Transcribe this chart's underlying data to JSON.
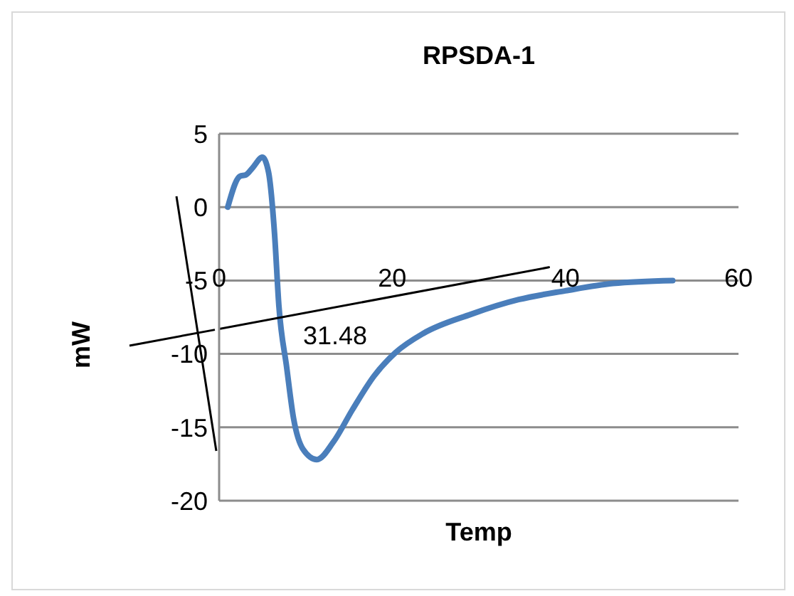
{
  "chart_data": {
    "type": "line",
    "title": "RPSDA-1",
    "xlabel": "Temp",
    "ylabel": "mW",
    "annotations": [
      "31.48"
    ],
    "xlim": [
      0,
      60
    ],
    "xticks": [
      0,
      20,
      40,
      60
    ],
    "ylim": [
      -20,
      5
    ],
    "yticks": [
      -20,
      -15,
      -10,
      -5,
      0,
      5
    ],
    "grid": "y",
    "legend": false,
    "marker": "none",
    "line_style": "solid",
    "series": [
      {
        "color": "#4a7ebb",
        "x": [
          1.0,
          2.4,
          3.1,
          3.9,
          5.0,
          5.7,
          6.4,
          6.9,
          7.8,
          8.6,
          9.7,
          11.3,
          13.2,
          15.4,
          17.9,
          20.4,
          23.6,
          29.1,
          34.6,
          40.0,
          45.5,
          52.4
        ],
        "values": [
          0,
          2.1,
          2.2,
          2.7,
          3.4,
          2.4,
          -1.8,
          -6.7,
          -10.9,
          -14.4,
          -16.5,
          -17.2,
          -16.0,
          -13.8,
          -11.5,
          -9.9,
          -8.6,
          -7.3,
          -6.3,
          -5.7,
          -5.2,
          -5.0
        ]
      },
      {
        "color": "#000000",
        "x": [
          0,
          38.1
        ],
        "values": [
          -8.3,
          -4.1
        ]
      }
    ]
  }
}
